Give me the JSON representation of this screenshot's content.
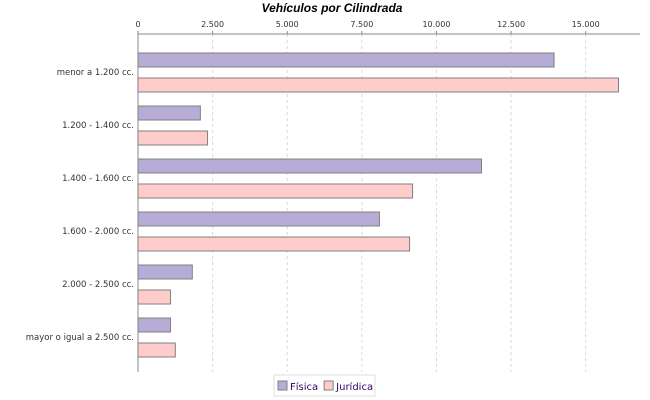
{
  "chart_data": {
    "type": "bar",
    "orientation": "horizontal",
    "title": "Vehículos por Cilindrada",
    "categories": [
      "menor a 1.200 cc.",
      "1.200 - 1.400 cc.",
      "1.400 - 1.600 cc.",
      "1.600 - 2.000 cc.",
      "2.000 - 2.500 cc.",
      "mayor o igual a 2.500 cc."
    ],
    "series": [
      {
        "name": "Física",
        "color": "#b6acd6",
        "values": [
          13940,
          2090,
          11510,
          8090,
          1820,
          1090
        ]
      },
      {
        "name": "Jurídica",
        "color": "#ffcccc",
        "values": [
          16100,
          2330,
          9200,
          9100,
          1090,
          1250
        ]
      }
    ],
    "xlim": [
      0,
      16820
    ],
    "ticks": [
      0,
      2500,
      5000,
      7500,
      10000,
      12500,
      15000
    ],
    "tick_labels": [
      "0",
      "2.500",
      "5.000",
      "7.500",
      "10.000",
      "12.500",
      "15.000"
    ],
    "axis_position": "top",
    "grid": true,
    "legend_position": "bottom"
  }
}
